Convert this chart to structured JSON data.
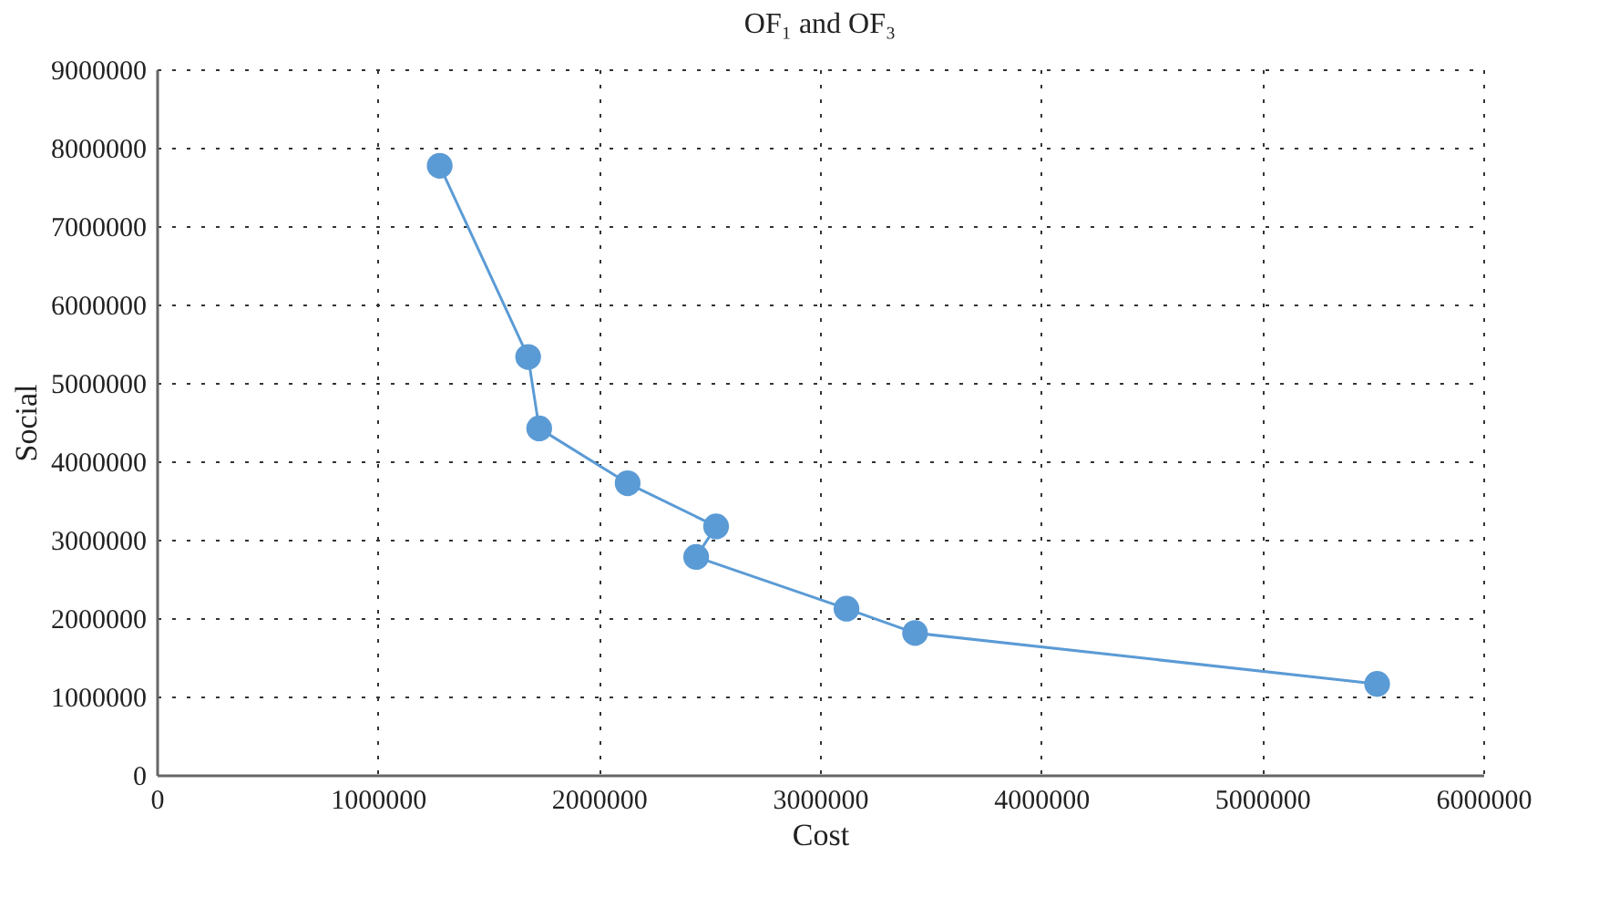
{
  "chart_data": {
    "type": "line",
    "title": "OF₁ and OF₃",
    "xlabel": "Cost",
    "ylabel": "Social",
    "x": [
      1280000,
      1680000,
      1730000,
      2130000,
      2530000,
      2440000,
      3120000,
      3430000,
      5520000
    ],
    "series": [
      {
        "color": "#5b9bd5",
        "values": [
          7770000,
          5330000,
          4420000,
          3720000,
          3170000,
          2780000,
          2120000,
          1810000,
          1160000
        ]
      }
    ],
    "xlim": [
      0,
      6000000
    ],
    "xticks": [
      0,
      1000000,
      2000000,
      3000000,
      4000000,
      5000000,
      6000000
    ],
    "ylim": [
      0,
      9000000
    ],
    "yticks": [
      0,
      1000000,
      2000000,
      3000000,
      4000000,
      5000000,
      6000000,
      7000000,
      8000000,
      9000000
    ],
    "grid": true,
    "marker": "circle",
    "line_style": "solid",
    "legend": false
  }
}
